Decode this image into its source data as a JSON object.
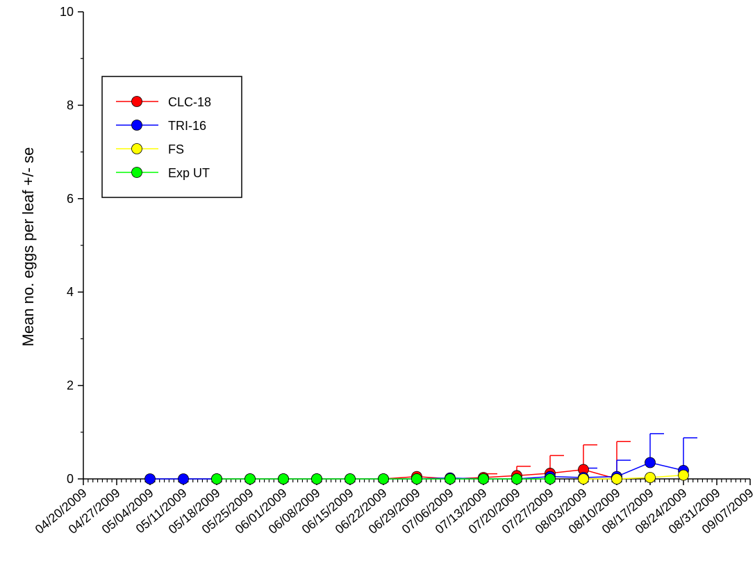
{
  "chart_data": {
    "type": "line",
    "title": "",
    "xlabel": "",
    "ylabel": "Mean no. eggs per leaf +/- se",
    "ylim": [
      0,
      10
    ],
    "yticks": [
      "0",
      "2",
      "4",
      "6",
      "8",
      "10"
    ],
    "xlim": [
      "2009-04-20",
      "2009-09-07"
    ],
    "xticks": [
      "04/20/2009",
      "04/27/2009",
      "05/04/2009",
      "05/11/2009",
      "05/18/2009",
      "05/25/2009",
      "06/01/2009",
      "06/08/2009",
      "06/15/2009",
      "06/22/2009",
      "06/29/2009",
      "07/06/2009",
      "07/13/2009",
      "07/20/2009",
      "07/27/2009",
      "08/03/2009",
      "08/10/2009",
      "08/17/2009",
      "08/24/2009",
      "08/31/2009",
      "09/07/2009"
    ],
    "grid": false,
    "legend": {
      "position": "top-left"
    },
    "series": [
      {
        "name": "CLC-18",
        "color": "#ff0000",
        "x": [
          "2009-05-18",
          "2009-05-25",
          "2009-06-01",
          "2009-06-08",
          "2009-06-15",
          "2009-06-22",
          "2009-06-29",
          "2009-07-06",
          "2009-07-13",
          "2009-07-20",
          "2009-07-27",
          "2009-08-03",
          "2009-08-10"
        ],
        "y": [
          0,
          0,
          0,
          0,
          0,
          0,
          0.05,
          0,
          0.03,
          0.07,
          0.12,
          0.2,
          0
        ],
        "err": [
          0,
          0,
          0,
          0,
          0,
          0,
          0,
          0,
          0.08,
          0.2,
          0.38,
          0.53,
          0.8
        ]
      },
      {
        "name": "TRI-16",
        "color": "#0000ff",
        "x": [
          "2009-05-04",
          "2009-05-11",
          "2009-05-18",
          "2009-05-25",
          "2009-06-01",
          "2009-06-08",
          "2009-06-15",
          "2009-06-22",
          "2009-06-29",
          "2009-07-06",
          "2009-07-13",
          "2009-07-20",
          "2009-07-27",
          "2009-08-03",
          "2009-08-10",
          "2009-08-17",
          "2009-08-24"
        ],
        "y": [
          0,
          0,
          0,
          0,
          0,
          0,
          0,
          0,
          0,
          0.02,
          0,
          0,
          0.05,
          0.03,
          0.05,
          0.35,
          0.18
        ],
        "err": [
          0,
          0,
          0,
          0,
          0,
          0,
          0,
          0,
          0,
          0,
          0,
          0,
          0,
          0.2,
          0.35,
          0.62,
          0.7
        ]
      },
      {
        "name": "FS",
        "color": "#ffff00",
        "x": [
          "2009-08-03",
          "2009-08-10",
          "2009-08-17",
          "2009-08-24"
        ],
        "y": [
          0,
          0,
          0.03,
          0.08
        ],
        "err": [
          0,
          0,
          0,
          0
        ]
      },
      {
        "name": "Exp UT",
        "color": "#00ff00",
        "x": [
          "2009-05-18",
          "2009-05-25",
          "2009-06-01",
          "2009-06-08",
          "2009-06-15",
          "2009-06-22",
          "2009-06-29",
          "2009-07-06",
          "2009-07-13",
          "2009-07-20",
          "2009-07-27"
        ],
        "y": [
          0,
          0,
          0,
          0,
          0,
          0,
          0,
          0,
          0,
          0,
          0
        ],
        "err": [
          0,
          0,
          0,
          0,
          0,
          0,
          0,
          0,
          0,
          0,
          0
        ]
      }
    ]
  }
}
